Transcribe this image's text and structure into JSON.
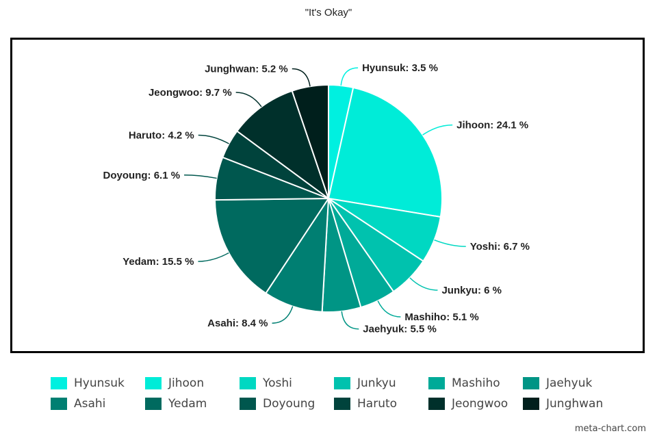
{
  "chart_data": {
    "type": "pie",
    "title": "\"It's Okay\"",
    "unit": "%",
    "slices": [
      {
        "name": "Hyunsuk",
        "value": 3.5,
        "color": "#00f0e0"
      },
      {
        "name": "Jihoon",
        "value": 24.1,
        "color": "#00ecd8"
      },
      {
        "name": "Yoshi",
        "value": 6.7,
        "color": "#00d8c2"
      },
      {
        "name": "Junkyu",
        "value": 6,
        "color": "#00c2ae"
      },
      {
        "name": "Mashiho",
        "value": 5.1,
        "color": "#00aa98"
      },
      {
        "name": "Jaehyuk",
        "value": 5.5,
        "color": "#009585"
      },
      {
        "name": "Asahi",
        "value": 8.4,
        "color": "#007f72"
      },
      {
        "name": "Yedam",
        "value": 15.5,
        "color": "#006a5f"
      },
      {
        "name": "Doyoung",
        "value": 6.1,
        "color": "#00574e"
      },
      {
        "name": "Haruto",
        "value": 4.2,
        "color": "#00433c"
      },
      {
        "name": "Jeongwoo",
        "value": 9.7,
        "color": "#00302b"
      },
      {
        "name": "Junghwan",
        "value": 5.2,
        "color": "#001f1c"
      }
    ],
    "legend_position": "bottom"
  },
  "watermark": "meta-chart.com"
}
